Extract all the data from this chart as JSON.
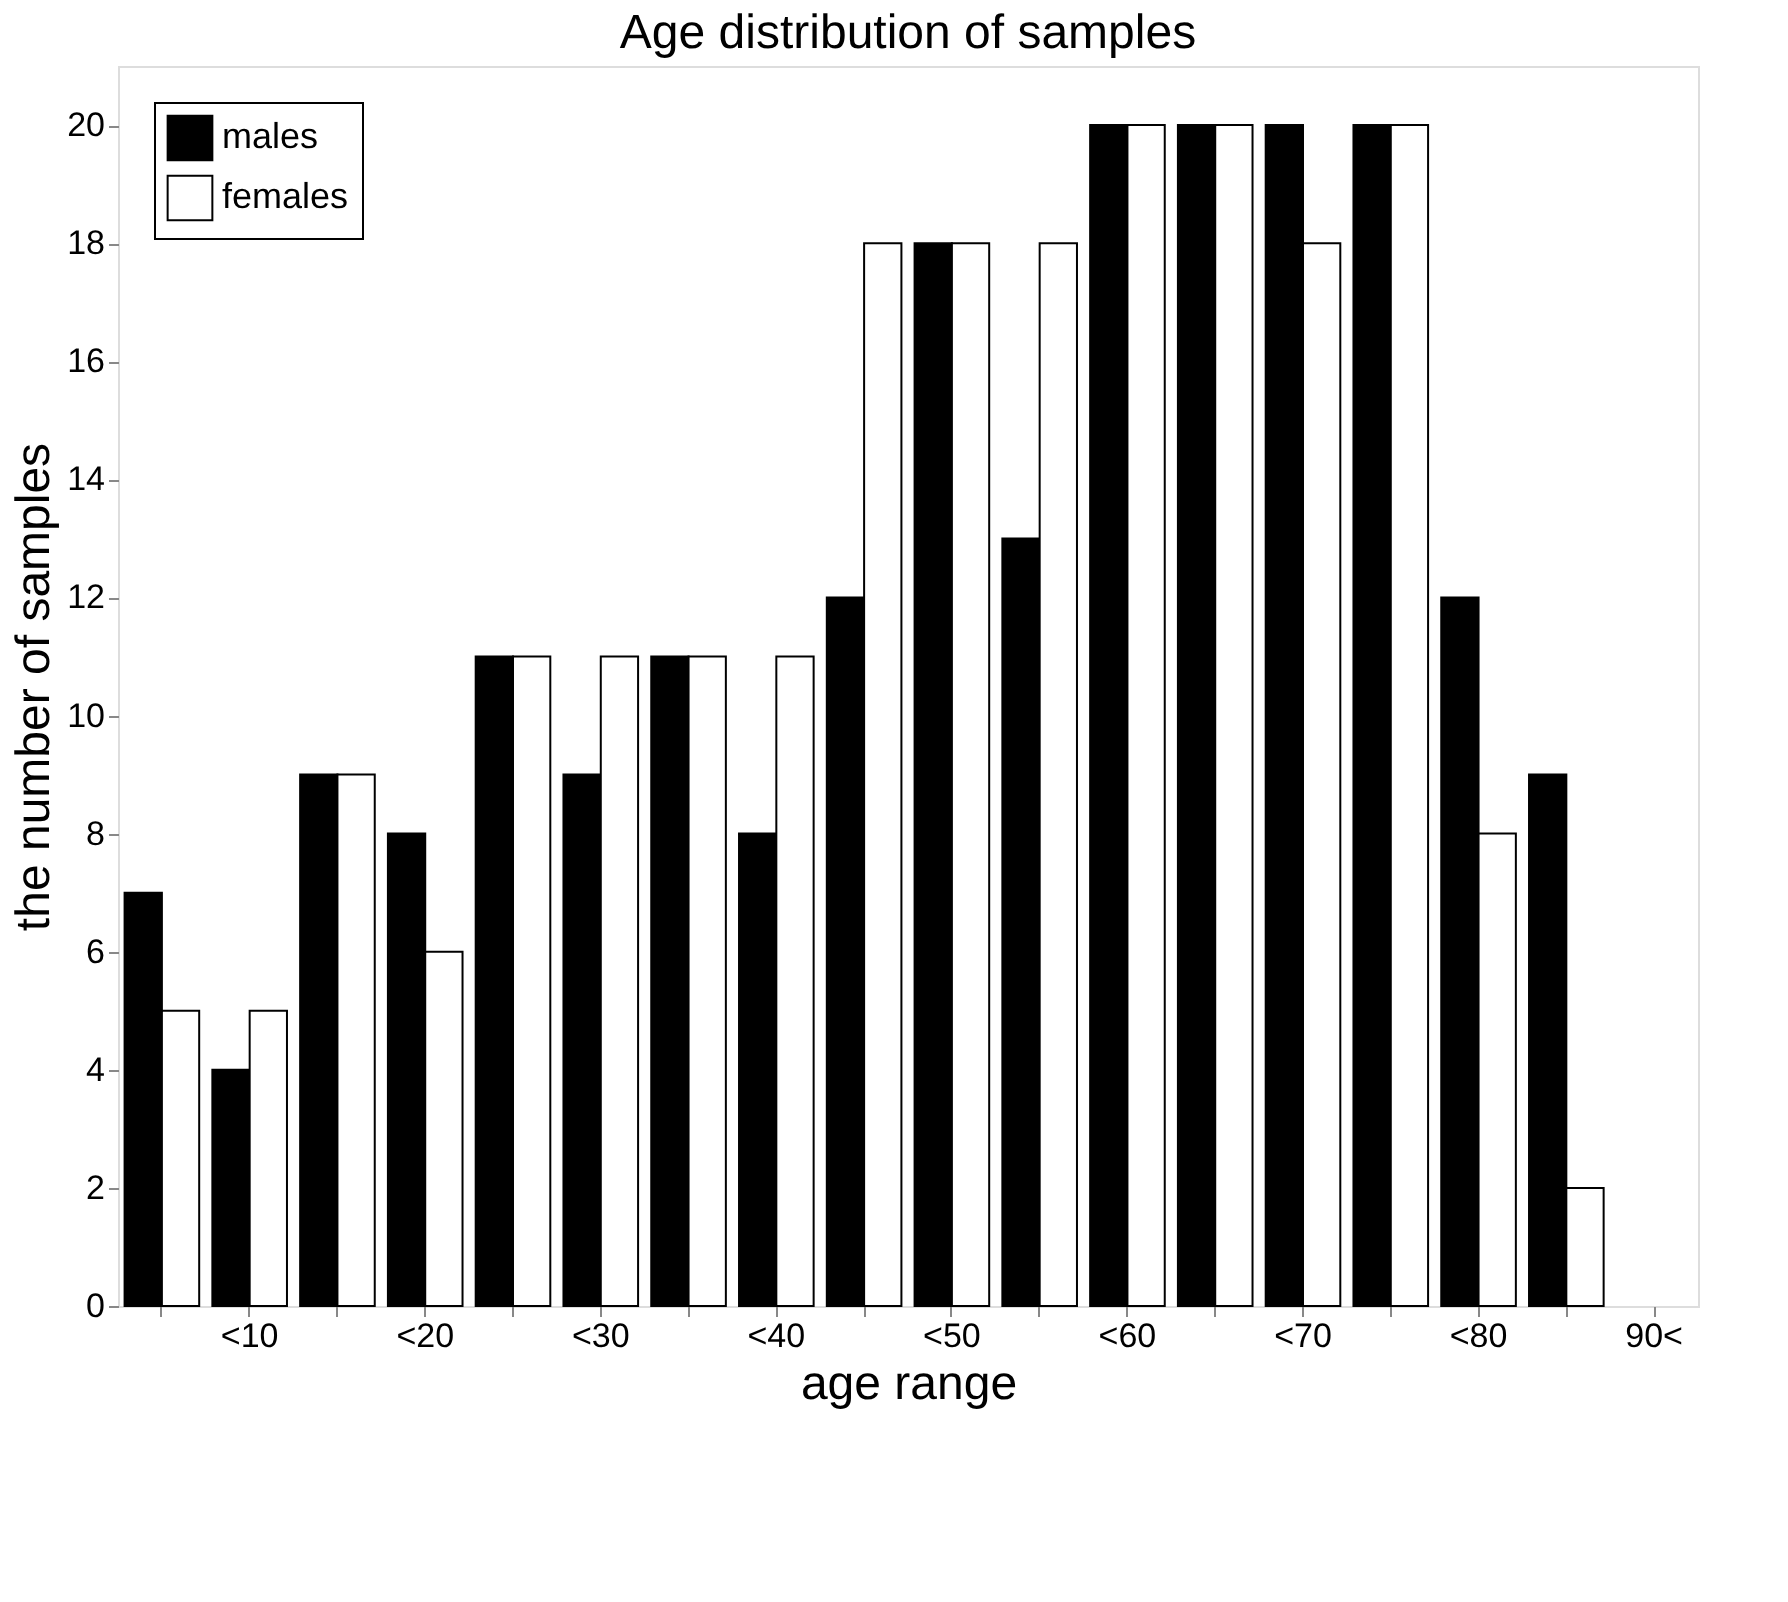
{
  "chart_data": {
    "type": "bar",
    "title": "Age distribution of samples",
    "xlabel": "age range",
    "ylabel": "the number of samples",
    "categories": [
      null,
      "<10",
      null,
      "<20",
      null,
      "<30",
      null,
      "<40",
      null,
      "<50",
      null,
      "<60",
      null,
      "<70",
      null,
      "<80",
      null,
      "90<"
    ],
    "series": [
      {
        "name": "males",
        "color": "#000000",
        "values": [
          7,
          4,
          9,
          8,
          11,
          9,
          11,
          8,
          12,
          18,
          13,
          20,
          20,
          20,
          20,
          12,
          9,
          null
        ]
      },
      {
        "name": "females",
        "color": "#ffffff",
        "values": [
          5,
          5,
          9,
          6,
          11,
          11,
          11,
          11,
          18,
          18,
          18,
          20,
          20,
          18,
          20,
          8,
          2,
          null
        ]
      }
    ],
    "ylim": [
      0,
      21
    ],
    "yticks": [
      0,
      2,
      4,
      6,
      8,
      10,
      12,
      14,
      16,
      18,
      20
    ],
    "grid": false,
    "legend": "top left"
  }
}
